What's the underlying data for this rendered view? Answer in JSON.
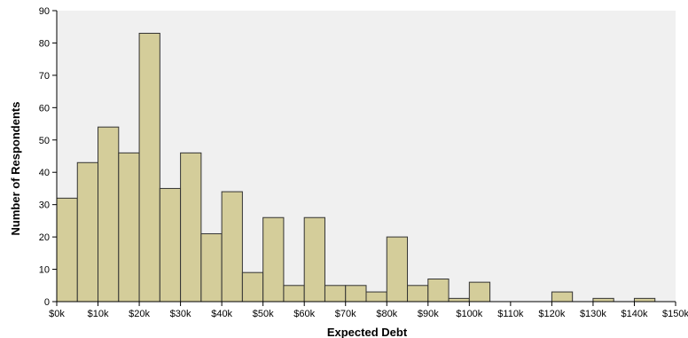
{
  "chart_data": {
    "type": "bar",
    "subtype": "histogram",
    "xlabel": "Expected Debt",
    "ylabel": "Number of Respondents",
    "xlim": [
      0,
      150000
    ],
    "ylim": [
      0,
      90
    ],
    "bin_width": 5000,
    "x_ticks": [
      {
        "value": 0,
        "label": "$0k"
      },
      {
        "value": 10000,
        "label": "$10k"
      },
      {
        "value": 20000,
        "label": "$20k"
      },
      {
        "value": 30000,
        "label": "$30k"
      },
      {
        "value": 40000,
        "label": "$40k"
      },
      {
        "value": 50000,
        "label": "$50k"
      },
      {
        "value": 60000,
        "label": "$60k"
      },
      {
        "value": 70000,
        "label": "$70k"
      },
      {
        "value": 80000,
        "label": "$80k"
      },
      {
        "value": 90000,
        "label": "$90k"
      },
      {
        "value": 100000,
        "label": "$100k"
      },
      {
        "value": 110000,
        "label": "$110k"
      },
      {
        "value": 120000,
        "label": "$120k"
      },
      {
        "value": 130000,
        "label": "$130k"
      },
      {
        "value": 140000,
        "label": "$140k"
      },
      {
        "value": 150000,
        "label": "$150k"
      }
    ],
    "y_ticks": [
      0,
      10,
      20,
      30,
      40,
      50,
      60,
      70,
      80,
      90
    ],
    "bins": [
      {
        "start": 0,
        "end": 5000,
        "count": 32
      },
      {
        "start": 5000,
        "end": 10000,
        "count": 43
      },
      {
        "start": 10000,
        "end": 15000,
        "count": 54
      },
      {
        "start": 15000,
        "end": 20000,
        "count": 46
      },
      {
        "start": 20000,
        "end": 25000,
        "count": 83
      },
      {
        "start": 25000,
        "end": 30000,
        "count": 35
      },
      {
        "start": 30000,
        "end": 35000,
        "count": 46
      },
      {
        "start": 35000,
        "end": 40000,
        "count": 21
      },
      {
        "start": 40000,
        "end": 45000,
        "count": 34
      },
      {
        "start": 45000,
        "end": 50000,
        "count": 9
      },
      {
        "start": 50000,
        "end": 55000,
        "count": 26
      },
      {
        "start": 55000,
        "end": 60000,
        "count": 5
      },
      {
        "start": 60000,
        "end": 65000,
        "count": 26
      },
      {
        "start": 65000,
        "end": 70000,
        "count": 5
      },
      {
        "start": 70000,
        "end": 75000,
        "count": 5
      },
      {
        "start": 75000,
        "end": 80000,
        "count": 3
      },
      {
        "start": 80000,
        "end": 85000,
        "count": 20
      },
      {
        "start": 85000,
        "end": 90000,
        "count": 5
      },
      {
        "start": 90000,
        "end": 95000,
        "count": 7
      },
      {
        "start": 95000,
        "end": 100000,
        "count": 1
      },
      {
        "start": 100000,
        "end": 105000,
        "count": 6
      },
      {
        "start": 120000,
        "end": 125000,
        "count": 3
      },
      {
        "start": 130000,
        "end": 135000,
        "count": 1
      },
      {
        "start": 140000,
        "end": 145000,
        "count": 1
      }
    ],
    "grid": false,
    "legend": "none",
    "colors": {
      "bar_fill": "#d4cd9a",
      "bar_stroke": "#333333",
      "plot_background": "#f0f0f0",
      "axis": "#000000"
    }
  }
}
